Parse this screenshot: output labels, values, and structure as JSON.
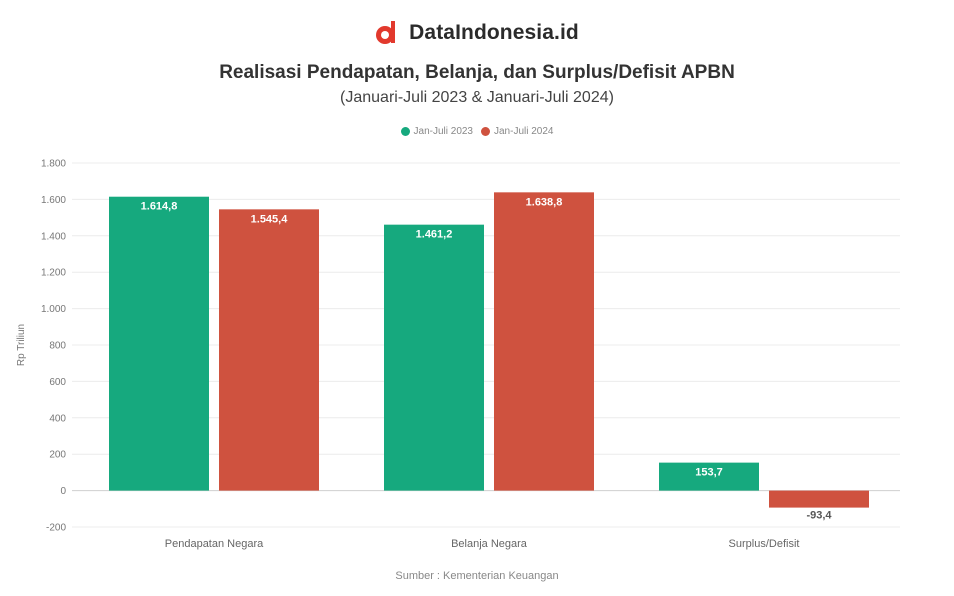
{
  "brand": {
    "name": "DataIndonesia.id",
    "logo_icon": "data-indonesia-logo-icon",
    "logo_color": "#e2392d"
  },
  "title": "Realisasi Pendapatan, Belanja, dan Surplus/Defisit APBN",
  "subtitle": "(Januari-Juli 2023 & Januari-Juli 2024)",
  "source": "Sumber : Kementerian Keuangan",
  "chart_data": {
    "type": "bar",
    "ylabel": "Rp Triliun",
    "ylim": [
      -200,
      1800
    ],
    "yticks": [
      -200,
      0,
      200,
      400,
      600,
      800,
      1000,
      1200,
      1400,
      1600,
      1800
    ],
    "ytick_labels": [
      "-200",
      "0",
      "200",
      "400",
      "600",
      "800",
      "1.000",
      "1.200",
      "1.400",
      "1.600",
      "1.800"
    ],
    "grid": true,
    "legend_position": "top-center",
    "categories": [
      "Pendapatan Negara",
      "Belanja Negara",
      "Surplus/Defisit"
    ],
    "series": [
      {
        "name": "Jan-Juli 2023",
        "color": "#16a97e",
        "values": [
          1614.8,
          1461.2,
          153.7
        ],
        "labels": [
          "1.614,8",
          "1.461,2",
          "153,7"
        ]
      },
      {
        "name": "Jan-Juli 2024",
        "color": "#cf523f",
        "values": [
          1545.4,
          1638.8,
          -93.4
        ],
        "labels": [
          "1.545,4",
          "1.638,8",
          "-93,4"
        ]
      }
    ]
  }
}
